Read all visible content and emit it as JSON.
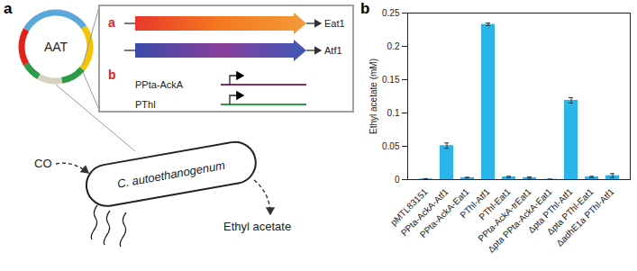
{
  "chart_data": {
    "type": "bar",
    "y_label": "Ethyl acetate (mM)",
    "categories": [
      "pMTL83151",
      "PPta-AckA-Atf1",
      "PPta-AckA-Eat1",
      "PThl-Atf1",
      "PThl-Eat1",
      "PPta-AckA-trEat1",
      "Δpta PPta-AckA-Eat1",
      "Δpta PThl-Atf1",
      "Δpta PThl-Eat1",
      "ΔadhE1a PThl-Atf1"
    ],
    "values": [
      0.001,
      0.051,
      0.003,
      0.233,
      0.004,
      0.003,
      0.0005,
      0.119,
      0.004,
      0.006
    ],
    "errors": [
      0.0005,
      0.004,
      0.0005,
      0.002,
      0.001,
      0.001,
      0.0002,
      0.004,
      0.001,
      0.003
    ],
    "color": "#29b5ea",
    "ylim": [
      0,
      0.25
    ],
    "yticks": [
      0,
      0.05,
      0.1,
      0.15,
      0.2,
      0.25
    ]
  },
  "panel_labels": [
    "a",
    "b"
  ],
  "diagram": {
    "plasmid_label": "AAT",
    "genes": {
      "label": "a",
      "items": [
        "Eat1",
        "Atf1"
      ]
    },
    "promoters": {
      "label": "b",
      "items": [
        "PPta-AckA",
        "PThl"
      ]
    },
    "cell": "C. autoethanogenum",
    "input": "CO",
    "output": "Ethyl acetate"
  }
}
